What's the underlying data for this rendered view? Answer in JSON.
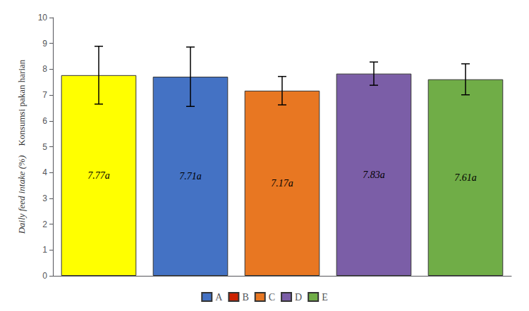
{
  "chart_data": {
    "type": "bar",
    "categories": [
      "A",
      "B",
      "C",
      "D",
      "E"
    ],
    "values": [
      7.77,
      7.71,
      7.17,
      7.83,
      7.61
    ],
    "errors": [
      1.12,
      1.15,
      0.55,
      0.45,
      0.6
    ],
    "value_labels": [
      "7.77a",
      "7.71a",
      "7.17a",
      "7.83a",
      "7.61a"
    ],
    "data_labels": true,
    "colors": [
      "#FFFF00",
      "#4472C4",
      "#E87722",
      "#7B5EA7",
      "#70AD47"
    ],
    "legend_colors": [
      "#4472C4",
      "#CC2200",
      "#E87722",
      "#7B5EA7",
      "#70AD47"
    ],
    "legend": "bottom",
    "ylabel": [
      "Konsumsi pakan harian",
      "Daily feed intake (%)"
    ],
    "ylim": [
      0,
      10
    ],
    "yticks": [
      0,
      1,
      2,
      3,
      4,
      5,
      6,
      7,
      8,
      9,
      10
    ],
    "grid": false,
    "tick_labels": "y"
  }
}
